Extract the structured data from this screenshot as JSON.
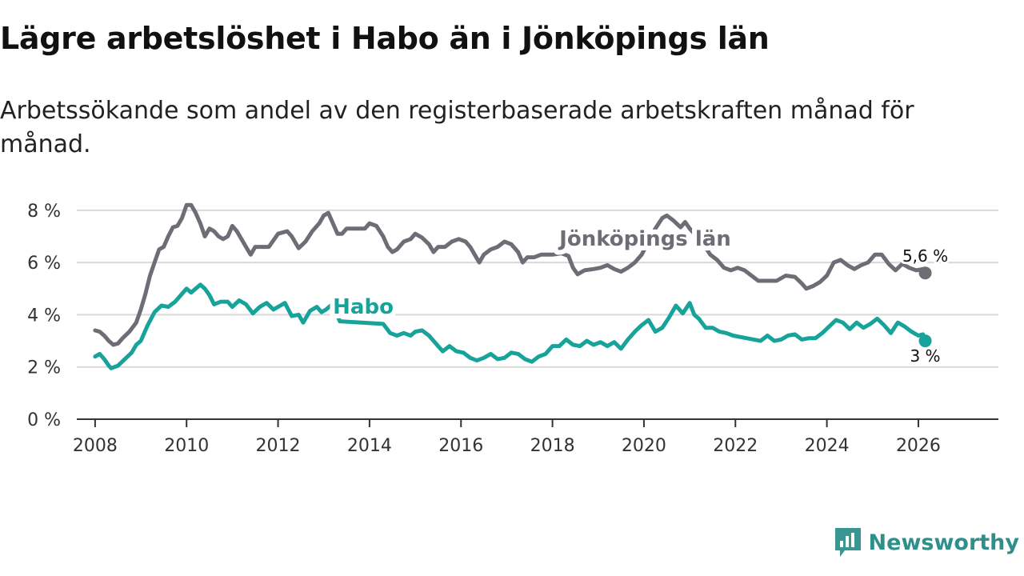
{
  "title": "Lägre arbetslöshet i Habo än i Jönköpings län",
  "subtitle": "Arbetssökande som andel av den registerbaserade arbetskraften månad för månad.",
  "brand": {
    "name": "Newsworthy",
    "icon": "newsworthy-chart-icon",
    "color": "#3a9690"
  },
  "chart_data": {
    "type": "line",
    "title": "Lägre arbetslöshet i Habo än i Jönköpings län",
    "subtitle": "Arbetssökande som andel av den registerbaserade arbetskraften månad för månad.",
    "xlabel": "",
    "ylabel": "",
    "xlim": [
      2007.6,
      2027.75
    ],
    "ylim": [
      0,
      8.7
    ],
    "grid": true,
    "legend": "inline labels",
    "x_ticks": [
      {
        "value": 2008,
        "label": "2008"
      },
      {
        "value": 2010,
        "label": "2010"
      },
      {
        "value": 2012,
        "label": "2012"
      },
      {
        "value": 2014,
        "label": "2014"
      },
      {
        "value": 2016,
        "label": "2016"
      },
      {
        "value": 2018,
        "label": "2018"
      },
      {
        "value": 2020,
        "label": "2020"
      },
      {
        "value": 2022,
        "label": "2022"
      },
      {
        "value": 2024,
        "label": "2024"
      },
      {
        "value": 2026,
        "label": "2026"
      }
    ],
    "y_ticks": [
      {
        "value": 0,
        "label": "0 %"
      },
      {
        "value": 2,
        "label": "2 %"
      },
      {
        "value": 4,
        "label": "4 %"
      },
      {
        "value": 6,
        "label": "6 %"
      },
      {
        "value": 8,
        "label": "8 %"
      }
    ],
    "series": [
      {
        "name": "Jönköpings län",
        "color": "#6d6d75",
        "end_label": "5,6 %",
        "label_at": [
          2018.15,
          6.65
        ],
        "points": [
          [
            2008.0,
            3.4
          ],
          [
            2008.1,
            3.35
          ],
          [
            2008.2,
            3.2
          ],
          [
            2008.3,
            3.0
          ],
          [
            2008.4,
            2.85
          ],
          [
            2008.5,
            2.9
          ],
          [
            2008.6,
            3.1
          ],
          [
            2008.75,
            3.35
          ],
          [
            2008.9,
            3.7
          ],
          [
            2009.0,
            4.2
          ],
          [
            2009.1,
            4.8
          ],
          [
            2009.2,
            5.5
          ],
          [
            2009.3,
            6.0
          ],
          [
            2009.4,
            6.5
          ],
          [
            2009.5,
            6.6
          ],
          [
            2009.6,
            7.0
          ],
          [
            2009.7,
            7.35
          ],
          [
            2009.8,
            7.4
          ],
          [
            2009.9,
            7.7
          ],
          [
            2010.0,
            8.2
          ],
          [
            2010.1,
            8.2
          ],
          [
            2010.2,
            7.9
          ],
          [
            2010.3,
            7.5
          ],
          [
            2010.4,
            7.0
          ],
          [
            2010.5,
            7.3
          ],
          [
            2010.6,
            7.2
          ],
          [
            2010.7,
            7.0
          ],
          [
            2010.8,
            6.9
          ],
          [
            2010.9,
            7.0
          ],
          [
            2011.0,
            7.4
          ],
          [
            2011.1,
            7.2
          ],
          [
            2011.2,
            6.9
          ],
          [
            2011.3,
            6.6
          ],
          [
            2011.4,
            6.3
          ],
          [
            2011.5,
            6.6
          ],
          [
            2011.6,
            6.6
          ],
          [
            2011.8,
            6.6
          ],
          [
            2012.0,
            7.1
          ],
          [
            2012.2,
            7.2
          ],
          [
            2012.3,
            7.0
          ],
          [
            2012.45,
            6.55
          ],
          [
            2012.6,
            6.8
          ],
          [
            2012.75,
            7.2
          ],
          [
            2012.9,
            7.5
          ],
          [
            2013.0,
            7.8
          ],
          [
            2013.1,
            7.9
          ],
          [
            2013.2,
            7.5
          ],
          [
            2013.3,
            7.1
          ],
          [
            2013.4,
            7.1
          ],
          [
            2013.5,
            7.3
          ],
          [
            2013.7,
            7.3
          ],
          [
            2013.9,
            7.3
          ],
          [
            2014.0,
            7.5
          ],
          [
            2014.15,
            7.4
          ],
          [
            2014.3,
            7.0
          ],
          [
            2014.4,
            6.6
          ],
          [
            2014.5,
            6.4
          ],
          [
            2014.6,
            6.5
          ],
          [
            2014.75,
            6.8
          ],
          [
            2014.9,
            6.9
          ],
          [
            2015.0,
            7.1
          ],
          [
            2015.15,
            6.95
          ],
          [
            2015.3,
            6.7
          ],
          [
            2015.4,
            6.4
          ],
          [
            2015.5,
            6.6
          ],
          [
            2015.65,
            6.6
          ],
          [
            2015.8,
            6.8
          ],
          [
            2015.95,
            6.9
          ],
          [
            2016.1,
            6.8
          ],
          [
            2016.2,
            6.6
          ],
          [
            2016.3,
            6.3
          ],
          [
            2016.4,
            6.0
          ],
          [
            2016.5,
            6.3
          ],
          [
            2016.65,
            6.5
          ],
          [
            2016.8,
            6.6
          ],
          [
            2016.95,
            6.8
          ],
          [
            2017.1,
            6.7
          ],
          [
            2017.25,
            6.4
          ],
          [
            2017.35,
            6.0
          ],
          [
            2017.45,
            6.2
          ],
          [
            2017.6,
            6.2
          ],
          [
            2017.75,
            6.3
          ],
          [
            2017.9,
            6.3
          ],
          [
            2018.0,
            6.3
          ],
          [
            2018.2,
            6.35
          ],
          [
            2018.35,
            6.25
          ],
          [
            2018.45,
            5.8
          ],
          [
            2018.55,
            5.55
          ],
          [
            2018.7,
            5.7
          ],
          [
            2018.9,
            5.75
          ],
          [
            2019.05,
            5.8
          ],
          [
            2019.2,
            5.9
          ],
          [
            2019.35,
            5.75
          ],
          [
            2019.5,
            5.65
          ],
          [
            2019.65,
            5.8
          ],
          [
            2019.8,
            6.0
          ],
          [
            2019.95,
            6.3
          ],
          [
            2020.1,
            6.8
          ],
          [
            2020.25,
            7.3
          ],
          [
            2020.4,
            7.7
          ],
          [
            2020.5,
            7.8
          ],
          [
            2020.65,
            7.6
          ],
          [
            2020.8,
            7.35
          ],
          [
            2020.9,
            7.55
          ],
          [
            2021.0,
            7.3
          ],
          [
            2021.15,
            7.0
          ],
          [
            2021.3,
            6.7
          ],
          [
            2021.45,
            6.3
          ],
          [
            2021.6,
            6.1
          ],
          [
            2021.75,
            5.8
          ],
          [
            2021.9,
            5.7
          ],
          [
            2022.05,
            5.8
          ],
          [
            2022.2,
            5.7
          ],
          [
            2022.35,
            5.5
          ],
          [
            2022.5,
            5.3
          ],
          [
            2022.7,
            5.3
          ],
          [
            2022.9,
            5.3
          ],
          [
            2023.1,
            5.5
          ],
          [
            2023.3,
            5.45
          ],
          [
            2023.45,
            5.2
          ],
          [
            2023.55,
            5.0
          ],
          [
            2023.7,
            5.1
          ],
          [
            2023.85,
            5.25
          ],
          [
            2024.0,
            5.5
          ],
          [
            2024.15,
            6.0
          ],
          [
            2024.3,
            6.1
          ],
          [
            2024.45,
            5.9
          ],
          [
            2024.6,
            5.75
          ],
          [
            2024.75,
            5.9
          ],
          [
            2024.9,
            6.0
          ],
          [
            2025.05,
            6.3
          ],
          [
            2025.2,
            6.3
          ],
          [
            2025.35,
            5.95
          ],
          [
            2025.5,
            5.7
          ],
          [
            2025.65,
            5.95
          ],
          [
            2025.8,
            5.8
          ],
          [
            2025.95,
            5.7
          ],
          [
            2026.1,
            5.75
          ],
          [
            2026.15,
            5.6
          ]
        ]
      },
      {
        "name": "Habo",
        "color": "#17a399",
        "end_label": "3 %",
        "label_at": [
          2013.2,
          4.05
        ],
        "points": [
          [
            2008.0,
            2.4
          ],
          [
            2008.1,
            2.5
          ],
          [
            2008.2,
            2.3
          ],
          [
            2008.3,
            2.05
          ],
          [
            2008.35,
            1.95
          ],
          [
            2008.5,
            2.05
          ],
          [
            2008.65,
            2.3
          ],
          [
            2008.8,
            2.55
          ],
          [
            2008.9,
            2.85
          ],
          [
            2009.0,
            3.0
          ],
          [
            2009.15,
            3.6
          ],
          [
            2009.3,
            4.1
          ],
          [
            2009.45,
            4.35
          ],
          [
            2009.6,
            4.3
          ],
          [
            2009.75,
            4.5
          ],
          [
            2009.9,
            4.8
          ],
          [
            2010.0,
            5.0
          ],
          [
            2010.1,
            4.85
          ],
          [
            2010.2,
            5.0
          ],
          [
            2010.3,
            5.15
          ],
          [
            2010.4,
            5.0
          ],
          [
            2010.5,
            4.75
          ],
          [
            2010.6,
            4.4
          ],
          [
            2010.75,
            4.5
          ],
          [
            2010.9,
            4.5
          ],
          [
            2011.0,
            4.3
          ],
          [
            2011.15,
            4.55
          ],
          [
            2011.3,
            4.4
          ],
          [
            2011.45,
            4.05
          ],
          [
            2011.6,
            4.3
          ],
          [
            2011.75,
            4.45
          ],
          [
            2011.9,
            4.2
          ],
          [
            2012.05,
            4.35
          ],
          [
            2012.15,
            4.45
          ],
          [
            2012.3,
            3.95
          ],
          [
            2012.45,
            4.0
          ],
          [
            2012.55,
            3.7
          ],
          [
            2012.7,
            4.15
          ],
          [
            2012.85,
            4.3
          ],
          [
            2012.95,
            4.1
          ],
          [
            2013.05,
            4.2
          ],
          [
            2013.15,
            4.35
          ],
          [
            2013.25,
            4.2
          ],
          [
            2013.35,
            3.75
          ],
          [
            2014.3,
            3.65
          ],
          [
            2014.45,
            3.3
          ],
          [
            2014.6,
            3.2
          ],
          [
            2014.75,
            3.3
          ],
          [
            2014.9,
            3.2
          ],
          [
            2015.0,
            3.35
          ],
          [
            2015.15,
            3.4
          ],
          [
            2015.3,
            3.2
          ],
          [
            2015.45,
            2.9
          ],
          [
            2015.6,
            2.6
          ],
          [
            2015.75,
            2.8
          ],
          [
            2015.9,
            2.6
          ],
          [
            2016.05,
            2.55
          ],
          [
            2016.2,
            2.35
          ],
          [
            2016.35,
            2.25
          ],
          [
            2016.5,
            2.35
          ],
          [
            2016.65,
            2.5
          ],
          [
            2016.8,
            2.3
          ],
          [
            2016.95,
            2.35
          ],
          [
            2017.1,
            2.55
          ],
          [
            2017.25,
            2.5
          ],
          [
            2017.4,
            2.3
          ],
          [
            2017.55,
            2.2
          ],
          [
            2017.7,
            2.4
          ],
          [
            2017.85,
            2.5
          ],
          [
            2018.0,
            2.8
          ],
          [
            2018.15,
            2.8
          ],
          [
            2018.3,
            3.05
          ],
          [
            2018.45,
            2.85
          ],
          [
            2018.6,
            2.8
          ],
          [
            2018.75,
            3.0
          ],
          [
            2018.9,
            2.85
          ],
          [
            2019.05,
            2.95
          ],
          [
            2019.2,
            2.8
          ],
          [
            2019.35,
            2.95
          ],
          [
            2019.5,
            2.7
          ],
          [
            2019.65,
            3.05
          ],
          [
            2019.8,
            3.35
          ],
          [
            2019.95,
            3.6
          ],
          [
            2020.1,
            3.8
          ],
          [
            2020.25,
            3.35
          ],
          [
            2020.4,
            3.5
          ],
          [
            2020.55,
            3.9
          ],
          [
            2020.7,
            4.35
          ],
          [
            2020.85,
            4.05
          ],
          [
            2021.0,
            4.45
          ],
          [
            2021.1,
            4.0
          ],
          [
            2021.2,
            3.85
          ],
          [
            2021.35,
            3.5
          ],
          [
            2021.5,
            3.5
          ],
          [
            2021.65,
            3.35
          ],
          [
            2021.8,
            3.3
          ],
          [
            2021.95,
            3.2
          ],
          [
            2022.1,
            3.15
          ],
          [
            2022.25,
            3.1
          ],
          [
            2022.4,
            3.05
          ],
          [
            2022.55,
            3.0
          ],
          [
            2022.7,
            3.2
          ],
          [
            2022.85,
            3.0
          ],
          [
            2023.0,
            3.05
          ],
          [
            2023.15,
            3.2
          ],
          [
            2023.3,
            3.25
          ],
          [
            2023.45,
            3.05
          ],
          [
            2023.6,
            3.1
          ],
          [
            2023.75,
            3.1
          ],
          [
            2023.9,
            3.3
          ],
          [
            2024.05,
            3.55
          ],
          [
            2024.2,
            3.8
          ],
          [
            2024.35,
            3.7
          ],
          [
            2024.5,
            3.45
          ],
          [
            2024.65,
            3.7
          ],
          [
            2024.8,
            3.5
          ],
          [
            2024.95,
            3.65
          ],
          [
            2025.1,
            3.85
          ],
          [
            2025.25,
            3.6
          ],
          [
            2025.4,
            3.3
          ],
          [
            2025.55,
            3.7
          ],
          [
            2025.7,
            3.55
          ],
          [
            2025.85,
            3.35
          ],
          [
            2026.0,
            3.2
          ],
          [
            2026.1,
            3.25
          ],
          [
            2026.15,
            3.0
          ]
        ]
      }
    ]
  }
}
